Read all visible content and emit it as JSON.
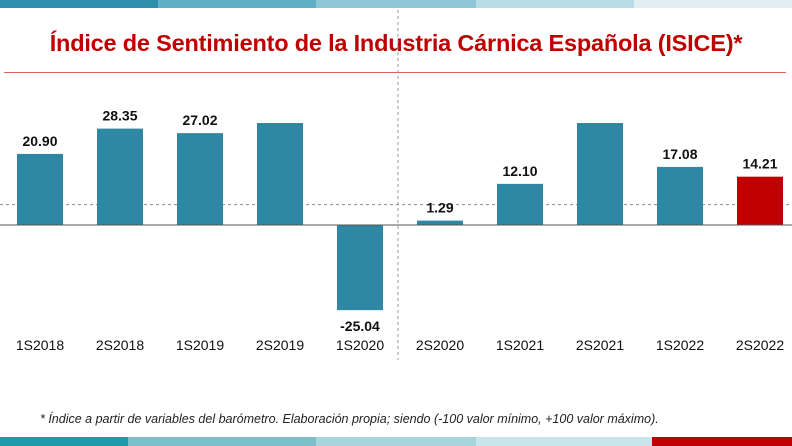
{
  "page": {
    "title": "Índice de Sentimiento de la Industria Cárnica Española (ISICE)*",
    "footnote": "* Índice a partir de variables del barómetro. Elaboración propia; siendo (-100 valor mínimo, +100 valor máximo)."
  },
  "colors": {
    "bar": "#2e87a3",
    "highlight_bar": "#c00000",
    "title": "#c00000",
    "top_bar": [
      "#2d8fab",
      "#5fb0c7",
      "#8ec8d8",
      "#b9dde7",
      "#e1eef3"
    ],
    "bottom_bar": [
      "#1f9aab",
      "#7cc0cb",
      "#a6d5dc",
      "#c7e5ea",
      "#c00000"
    ]
  },
  "chart_data": {
    "type": "bar",
    "title": "Índice de Sentimiento de la Industria Cárnica Española (ISICE)*",
    "categories": [
      "1S2018",
      "2S2018",
      "1S2019",
      "2S2019",
      "1S2020",
      "2S2020",
      "1S2021",
      "2S2021",
      "1S2022",
      "2S2022"
    ],
    "values": [
      20.9,
      28.35,
      27.02,
      30.0,
      -25.04,
      1.29,
      12.1,
      30.0,
      17.08,
      14.21
    ],
    "data_labels": [
      "20.90",
      "28.35",
      "27.02",
      "",
      "-25.04",
      "1.29",
      "12.10",
      "",
      "17.08",
      "14.21"
    ],
    "highlight_index": 9,
    "reference_line": 6.0,
    "vertical_divider_after_index": 4,
    "xlabel": "",
    "ylabel": "",
    "grid": false,
    "legend": "none"
  }
}
